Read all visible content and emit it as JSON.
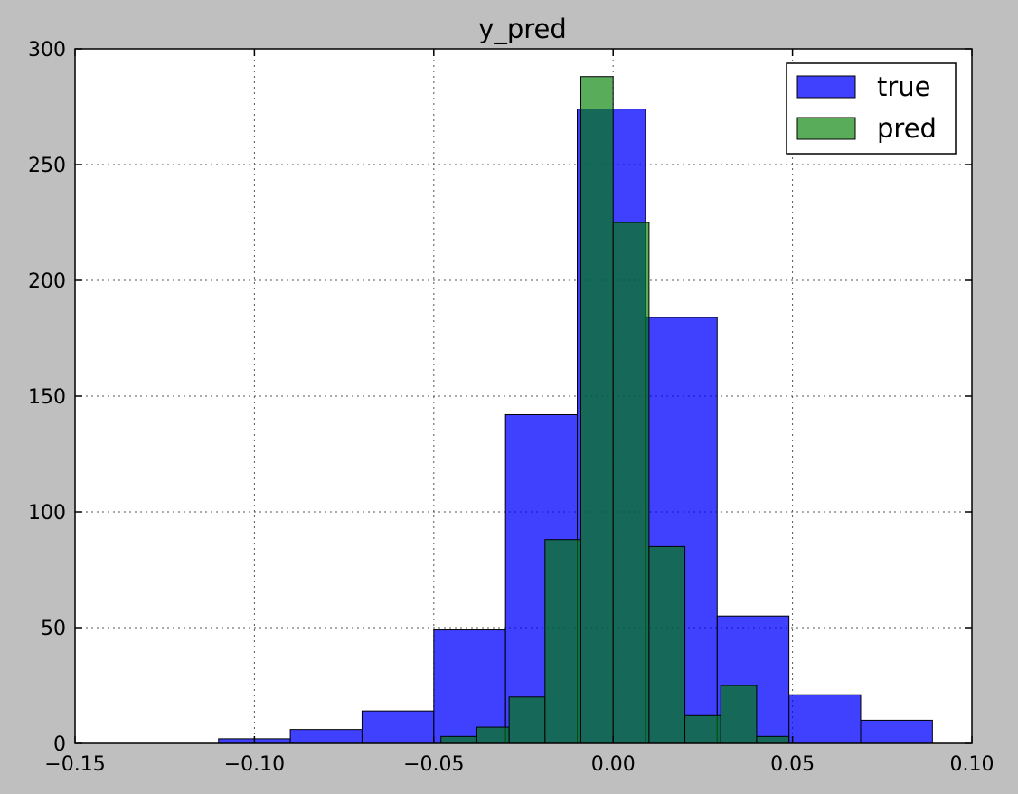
{
  "chart_data": {
    "type": "bar",
    "title": "y_pred",
    "xlabel": "",
    "ylabel": "",
    "xlim": [
      -0.15,
      0.1
    ],
    "ylim": [
      0,
      300
    ],
    "x_ticks": [
      -0.15,
      -0.1,
      -0.05,
      0.0,
      0.05,
      0.1
    ],
    "x_tick_labels": [
      "−0.15",
      "−0.10",
      "−0.05",
      "0.00",
      "0.05",
      "0.10"
    ],
    "y_ticks": [
      0,
      50,
      100,
      150,
      200,
      250,
      300
    ],
    "y_tick_labels": [
      "0",
      "50",
      "100",
      "150",
      "200",
      "250",
      "300"
    ],
    "grid": true,
    "legend_position": "top-right",
    "series": [
      {
        "name": "true",
        "color": "#0000ff",
        "opacity": 0.75,
        "bin_edges": [
          -0.11,
          -0.09,
          -0.07,
          -0.05,
          -0.03,
          -0.01,
          0.009,
          0.029,
          0.049,
          0.069,
          0.089
        ],
        "values": [
          2,
          6,
          14,
          49,
          142,
          274,
          184,
          55,
          21,
          10
        ]
      },
      {
        "name": "pred",
        "color": "#008000",
        "opacity": 0.65,
        "bin_edges": [
          -0.048,
          -0.038,
          -0.029,
          -0.019,
          -0.009,
          0.0,
          0.01,
          0.02,
          0.03,
          0.04,
          0.049
        ],
        "values": [
          3,
          7,
          20,
          88,
          288,
          225,
          85,
          12,
          25,
          3
        ]
      }
    ]
  }
}
